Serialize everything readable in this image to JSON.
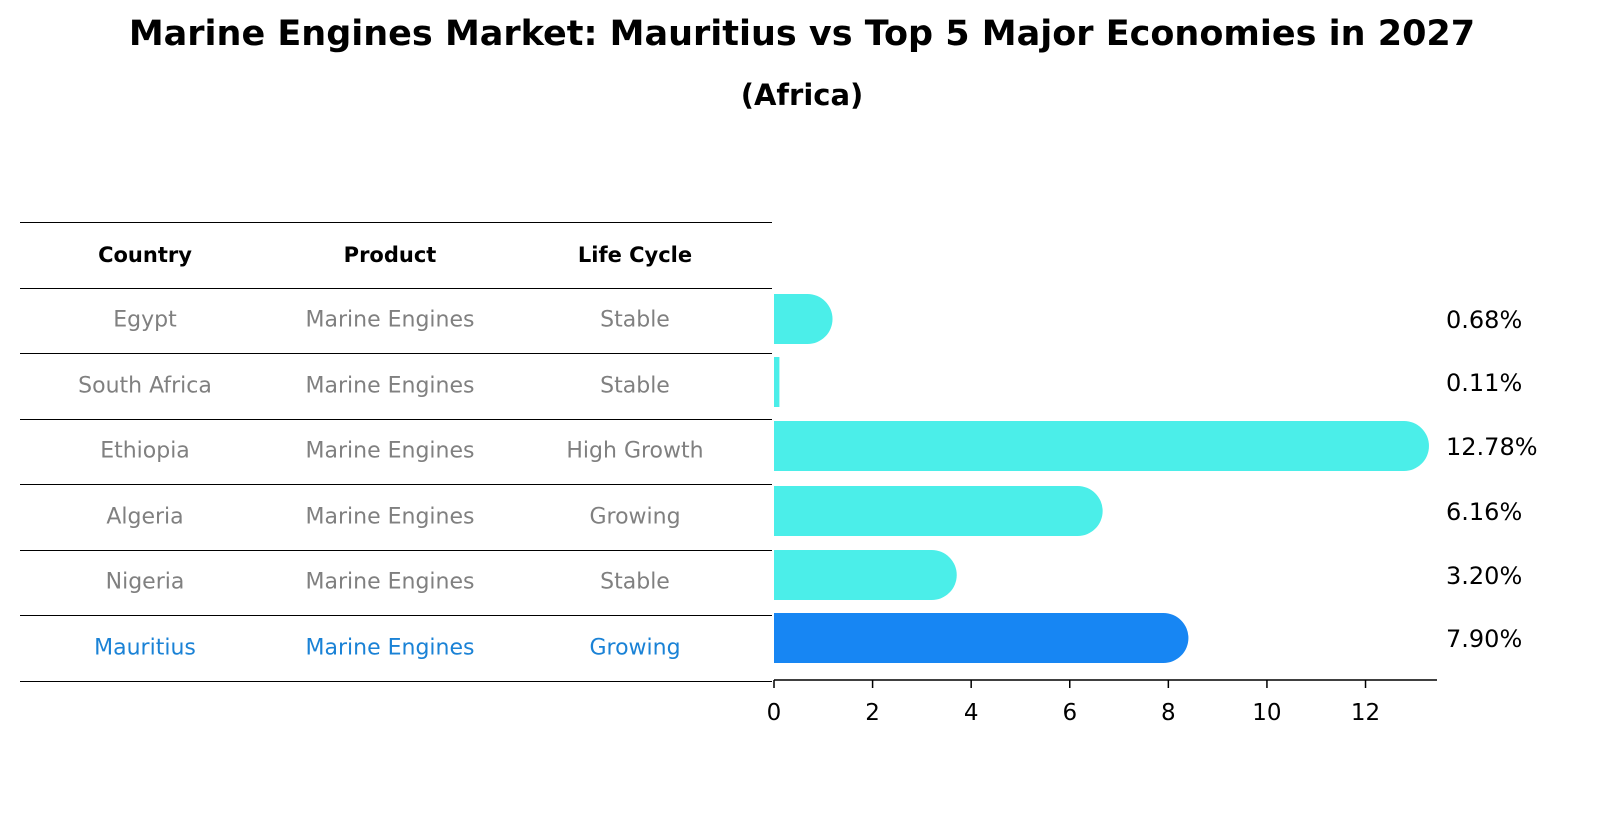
{
  "title": "Marine Engines Market: Mauritius vs Top 5 Major Economies in 2027",
  "subtitle": "(Africa)",
  "table": {
    "headers": [
      "Country",
      "Product",
      "Life Cycle"
    ],
    "rows": [
      {
        "country": "Egypt",
        "product": "Marine Engines",
        "life_cycle": "Stable"
      },
      {
        "country": "South Africa",
        "product": "Marine Engines",
        "life_cycle": "Stable"
      },
      {
        "country": "Ethiopia",
        "product": "Marine Engines",
        "life_cycle": "High Growth"
      },
      {
        "country": "Algeria",
        "product": "Marine Engines",
        "life_cycle": "Growing"
      },
      {
        "country": "Nigeria",
        "product": "Marine Engines",
        "life_cycle": "Stable"
      },
      {
        "country": "Mauritius",
        "product": "Marine Engines",
        "life_cycle": "Growing"
      }
    ]
  },
  "chart_data": {
    "type": "bar",
    "orientation": "horizontal",
    "categories": [
      "Egypt",
      "South Africa",
      "Ethiopia",
      "Algeria",
      "Nigeria",
      "Mauritius"
    ],
    "values": [
      0.68,
      0.11,
      12.78,
      6.16,
      3.2,
      7.9
    ],
    "value_labels": [
      "0.68%",
      "0.11%",
      "12.78%",
      "6.16%",
      "3.20%",
      "7.90%"
    ],
    "highlight": "Mauritius",
    "xlim": [
      0,
      13.45
    ],
    "xticks": [
      0,
      2,
      4,
      6,
      8,
      10,
      12
    ],
    "colors": {
      "default": "#4beee9",
      "highlight": "#1786f3",
      "highlight_text": "#1a82d6",
      "muted_text": "#808080"
    }
  }
}
